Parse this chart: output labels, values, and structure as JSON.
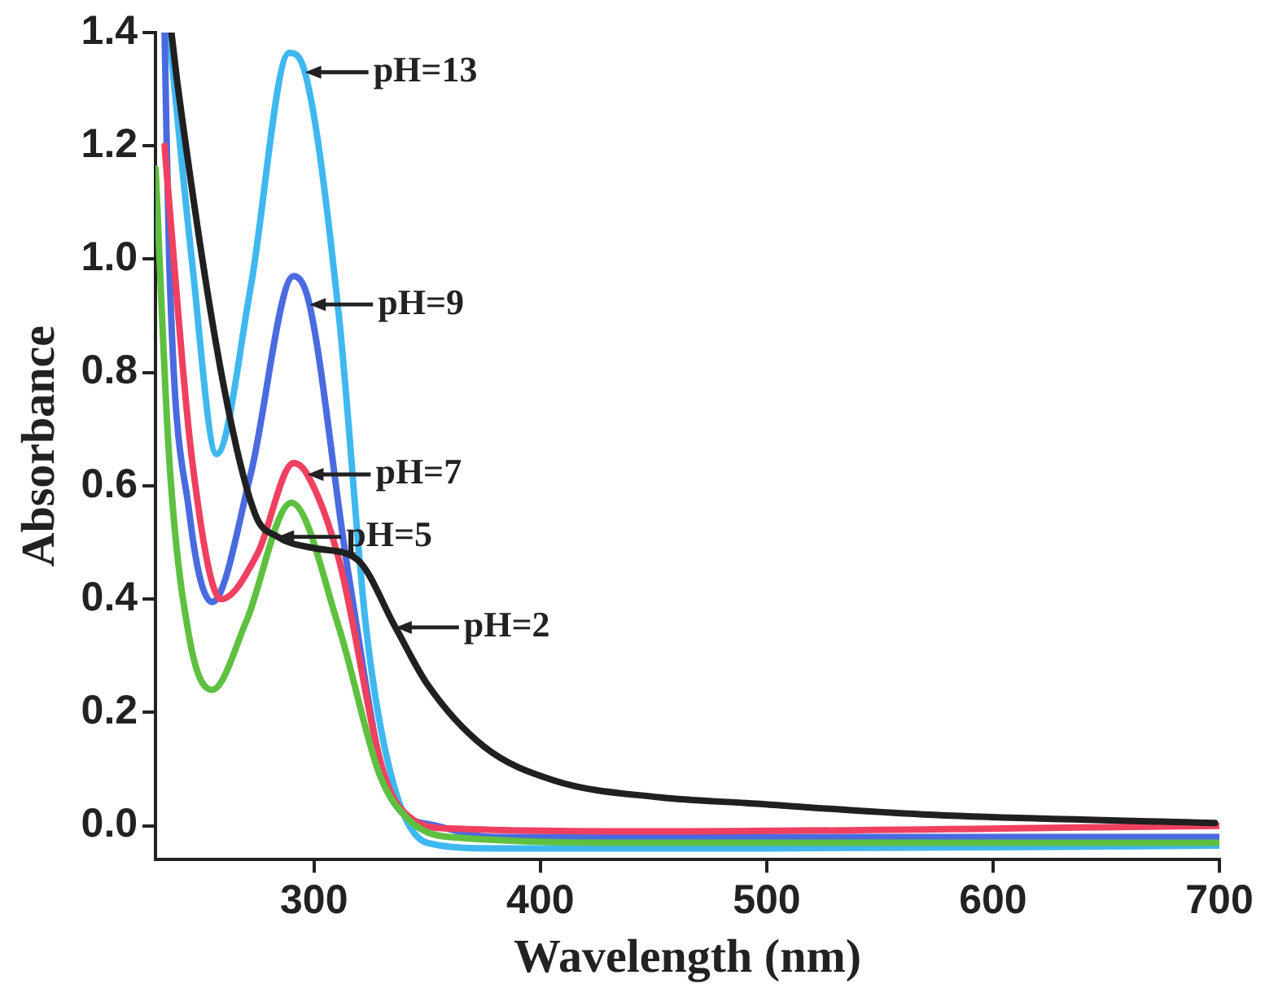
{
  "chart_data": {
    "type": "line",
    "xlabel": "Wavelength (nm)",
    "ylabel": "Absorbance",
    "xlim": [
      230,
      700
    ],
    "ylim": [
      -0.06,
      1.4
    ],
    "xticks": [
      300,
      400,
      500,
      600,
      700
    ],
    "yticks": [
      {
        "value": 0,
        "label": "0.0"
      },
      0.2,
      0.4,
      0.6,
      0.8,
      {
        "value": 1,
        "label": "1.0"
      },
      1.2,
      1.4
    ],
    "grid": false,
    "legend": false,
    "marker": "none",
    "line_style": "solid",
    "series": [
      {
        "color": "#202020",
        "x": [
          237,
          240,
          259,
          274,
          284,
          300,
          319,
          336,
          350,
          375,
          406,
          453,
          491,
          569,
          698
        ],
        "values": [
          1.4,
          1.3,
          0.8,
          0.55,
          0.51,
          0.49,
          0.47,
          0.35,
          0.25,
          0.14,
          0.08,
          0.05,
          0.04,
          0.02,
          0.005
        ]
      },
      {
        "color": "#5ec040",
        "x": [
          230,
          236,
          245,
          255,
          270,
          290,
          311,
          329,
          342,
          360,
          450,
          700
        ],
        "values": [
          1.16,
          0.65,
          0.33,
          0.24,
          0.36,
          0.57,
          0.35,
          0.09,
          0.01,
          -0.02,
          -0.03,
          -0.03
        ]
      },
      {
        "color": "#f04060",
        "x": [
          234,
          236,
          246,
          259,
          275,
          291,
          297,
          311,
          331,
          344,
          360,
          450,
          700
        ],
        "values": [
          1.2,
          1.1,
          0.65,
          0.4,
          0.48,
          0.64,
          0.62,
          0.47,
          0.09,
          0.01,
          -0.005,
          -0.01,
          0.0
        ]
      },
      {
        "color": "#4a6be0",
        "x": [
          234,
          236,
          245,
          255,
          272,
          291,
          298,
          315,
          334,
          354,
          380,
          500,
          700
        ],
        "values": [
          1.4,
          1.0,
          0.55,
          0.395,
          0.62,
          0.97,
          0.92,
          0.45,
          0.05,
          0.0,
          -0.02,
          -0.02,
          -0.02
        ]
      },
      {
        "color": "#3fb8f0",
        "x": [
          236,
          246,
          257,
          272,
          289,
          296,
          311,
          323,
          334,
          350,
          380,
          500,
          700
        ],
        "values": [
          1.4,
          1.0,
          0.656,
          0.95,
          1.364,
          1.33,
          0.9,
          0.35,
          0.09,
          -0.03,
          -0.04,
          -0.04,
          -0.035
        ]
      }
    ],
    "annotations": [
      {
        "text": "pH=13",
        "x": 296,
        "y": 1.33
      },
      {
        "text": "pH=9",
        "x": 298,
        "y": 0.92
      },
      {
        "text": "pH=7",
        "x": 297,
        "y": 0.62
      },
      {
        "text": "pH=5",
        "x": 284,
        "y": 0.51
      },
      {
        "text": "pH=2",
        "x": 336,
        "y": 0.35
      }
    ]
  }
}
